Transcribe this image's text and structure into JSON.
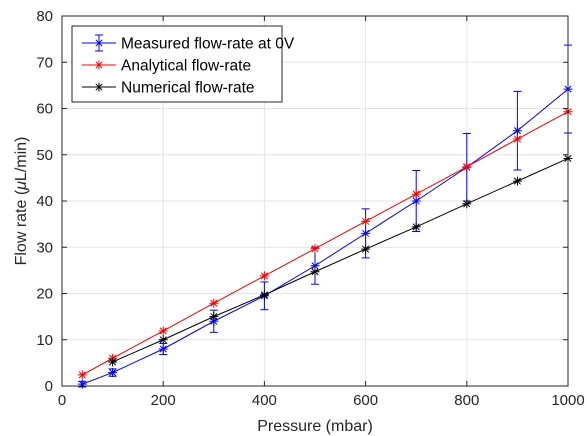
{
  "chart_data": {
    "type": "line",
    "xlabel": "Pressure (mbar)",
    "ylabel_prefix": "Flow rate (",
    "ylabel_mu": "μ",
    "ylabel_suffix": "L/min)",
    "xlim": [
      0,
      1000
    ],
    "ylim": [
      0,
      80
    ],
    "xticks": [
      0,
      200,
      400,
      600,
      800,
      1000
    ],
    "yticks": [
      0,
      10,
      20,
      30,
      40,
      50,
      60,
      70,
      80
    ],
    "grid": true,
    "legend_position": "top-left",
    "series": [
      {
        "name": "Measured flow-rate at 0V",
        "color": "#0000ff",
        "marker": "asterisk",
        "x": [
          40,
          100,
          200,
          300,
          400,
          500,
          600,
          700,
          800,
          900,
          1000
        ],
        "y": [
          0.4,
          2.9,
          8.0,
          14.0,
          19.5,
          26.0,
          33.0,
          40.0,
          47.3,
          55.2,
          64.2
        ],
        "err": [
          0.6,
          0.8,
          1.2,
          2.4,
          3.0,
          4.0,
          5.3,
          6.6,
          7.3,
          8.5,
          9.5
        ]
      },
      {
        "name": "Analytical flow-rate",
        "color": "#ff0000",
        "marker": "asterisk",
        "x": [
          40,
          100,
          200,
          300,
          400,
          500,
          600,
          700,
          800,
          900,
          1000
        ],
        "y": [
          2.4,
          6.0,
          11.9,
          17.9,
          23.8,
          29.7,
          35.6,
          41.5,
          47.4,
          53.4,
          59.3
        ]
      },
      {
        "name": "Numerical flow-rate",
        "color": "#000000",
        "marker": "asterisk",
        "x": [
          100,
          200,
          300,
          400,
          500,
          600,
          700,
          800,
          900,
          1000
        ],
        "y": [
          5.2,
          10.0,
          15.0,
          19.7,
          24.7,
          29.6,
          34.4,
          39.4,
          44.3,
          49.2
        ]
      }
    ]
  }
}
